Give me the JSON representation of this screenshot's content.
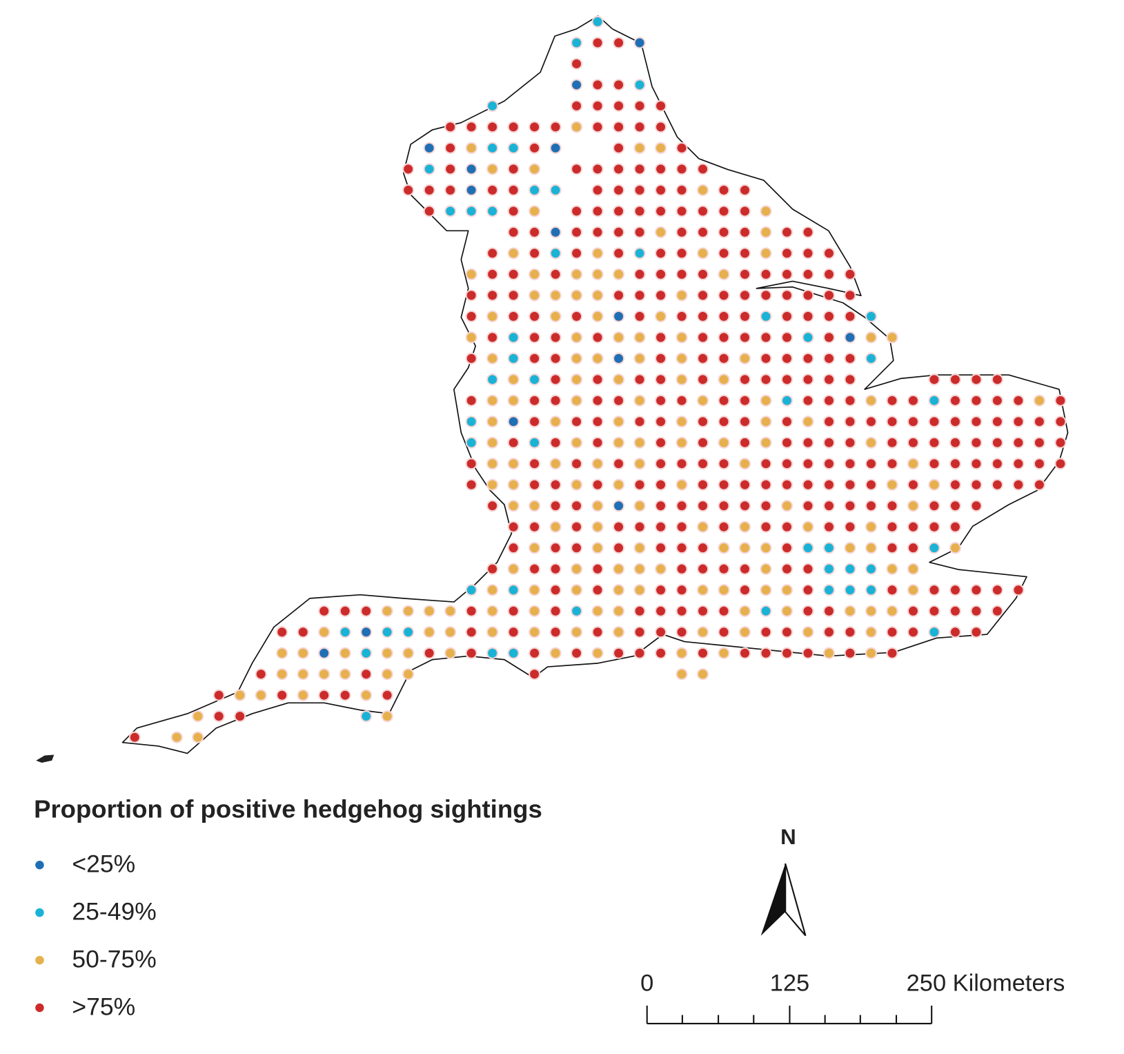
{
  "map": {
    "legend": {
      "title": "Proportion of positive hedgehog sightings",
      "items": [
        {
          "label": "<25%",
          "color": "#1f6fb4"
        },
        {
          "label": "25-49%",
          "color": "#1ab3d6"
        },
        {
          "label": "50-75%",
          "color": "#e6b04c"
        },
        {
          "label": ">75%",
          "color": "#cc2b2b"
        }
      ]
    },
    "north": "N",
    "scale": {
      "labels": [
        "0",
        "125",
        "250 Kilometers"
      ]
    },
    "grid": {
      "rows": [
        "......................1......................",
        ".....................1330....................",
        ".....................3.......................",
        ".....................0331....................",
        ".................1...33333...................",
        "...............33333323333...................",
        "..............0321130..3223..................",
        ".............3130232.3333333................",
        ".............33303311.33333233...............",
        "..............311132.3333333332..............",
        "..................330333323333233............",
        ".................32313231332332333...........",
        "................2332322233332333333..........",
        "................3332222333233333333..........",
        "................32332320323333133331.........",
        "................231332322323333313022........",
        "................32133220232332333331.........",
        ".................121323233232333333...3333...",
        "................32233233233233213332331333323",
        "................12032332332333232333333333333",
        "................12313232232323233332333333333",
        "................32232323233332333333323333333",
        "................3223323233233333333323233333.",
        ".................322332023333332333332333....",
        "..................3323233332323323323333.....",
        "..................3233232333222311223312.....",
        ".................323323222333323311122.......",
        "................121232322332232231113233333..",
        ".........333222232323122333332123322233333...",
        ".......3321011223232323233323233233233133....",
        ".......220212232311323233323233332323........",
        "......32222322.....3......22.................",
        "....322323323................................",
        "...233.....12................................",
        "3.22........................................."
      ]
    }
  }
}
